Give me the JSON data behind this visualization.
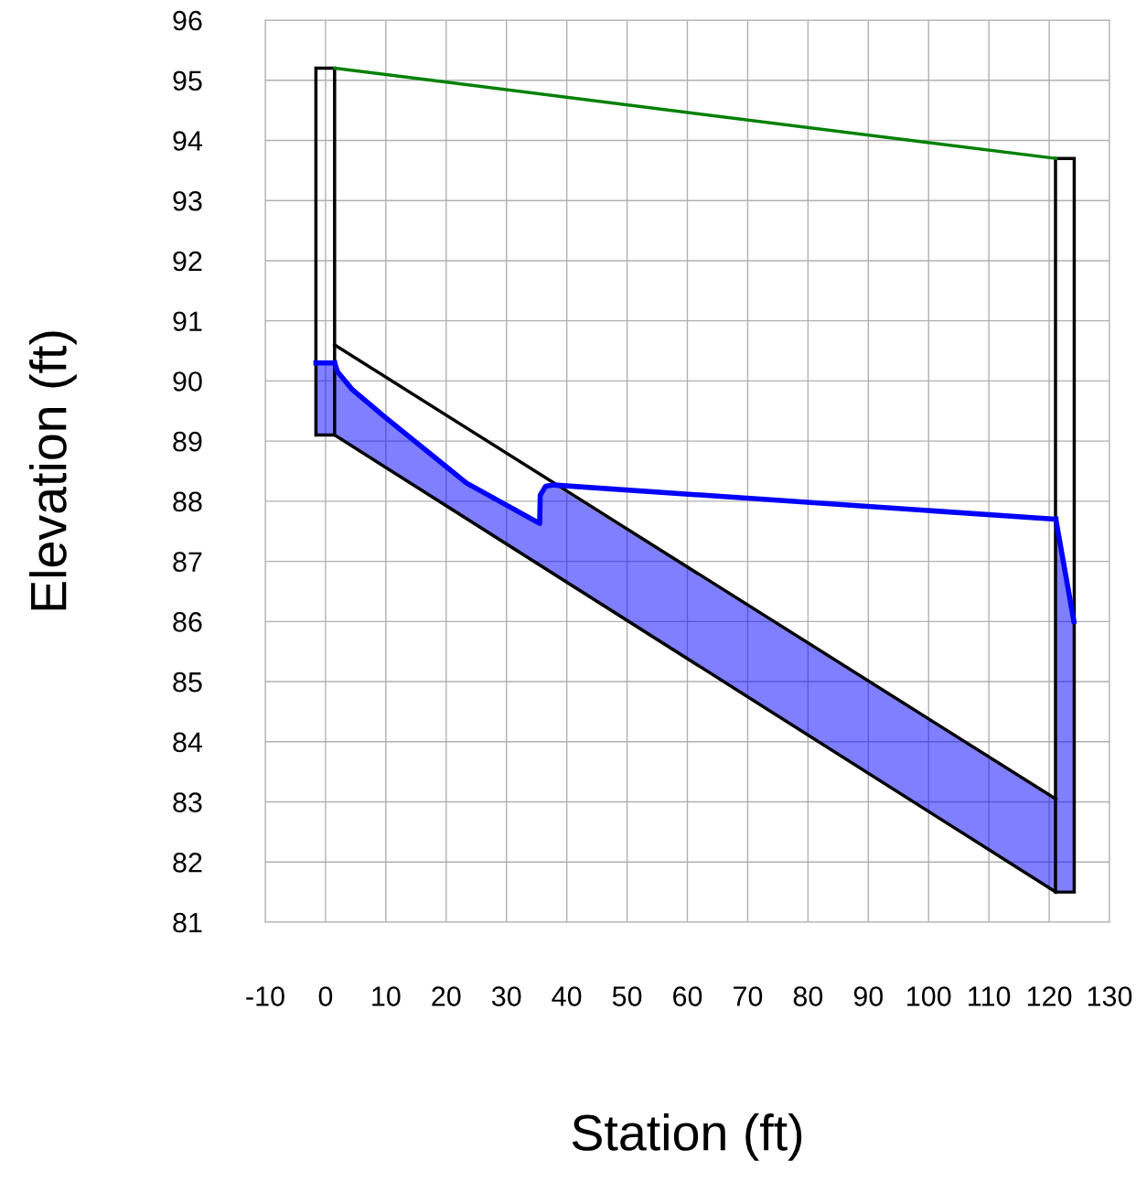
{
  "chart_data": {
    "type": "line",
    "xlabel": "Station (ft)",
    "ylabel": "Elevation (ft)",
    "xlim": [
      -10,
      130
    ],
    "ylim": [
      81,
      96
    ],
    "xticks": [
      -10,
      0,
      10,
      20,
      30,
      40,
      50,
      60,
      70,
      80,
      90,
      100,
      110,
      120,
      130
    ],
    "yticks": [
      81,
      82,
      83,
      84,
      85,
      86,
      87,
      88,
      89,
      90,
      91,
      92,
      93,
      94,
      95,
      96
    ],
    "grid": true,
    "marker": "none",
    "series": [
      {
        "type": "bar",
        "color": "#000000",
        "x": [
          -0.05,
          122.6
        ],
        "base": [
          89.1,
          81.5
        ],
        "values": [
          6.1,
          12.2
        ]
      },
      {
        "color": "#0000ff",
        "x": [
          -1.6,
          1.5
        ],
        "values": [
          90.3,
          90.3
        ],
        "upper": [
          90.3,
          90.3
        ],
        "lower": [
          89.1,
          89.1
        ]
      },
      {
        "color": "#0000ff",
        "x": [
          1.5,
          2,
          4.4,
          9.7,
          23.4,
          35.5,
          35.6,
          36.5,
          37.8,
          121.1
        ],
        "values": [
          90.3,
          90.15,
          89.86,
          89.41,
          88.3,
          87.63,
          88.1,
          88.25,
          88.27,
          87.7
        ],
        "upper": [
          90.3,
          90.15,
          89.86,
          89.41,
          88.3,
          87.63,
          88.1,
          88.25,
          88.27,
          83.05
        ],
        "lower": [
          89.1,
          89.07,
          88.92,
          88.58,
          87.72,
          86.95,
          86.94,
          86.88,
          86.8,
          81.5
        ]
      },
      {
        "color": "#0000ff",
        "x": [
          121.1,
          124.1
        ],
        "values": [
          87.7,
          86.0
        ],
        "upper": [
          87.7,
          86.0
        ],
        "lower": [
          81.5,
          81.5
        ]
      },
      {
        "color": "#008000",
        "x": [
          1.5,
          121.1
        ],
        "values": [
          95.2,
          93.7
        ]
      },
      {
        "color": "#000000",
        "x": [
          1.5,
          121.1
        ],
        "values": [
          90.6,
          83.05
        ]
      },
      {
        "color": "#000000",
        "x": [
          1.5,
          121.1
        ],
        "values": [
          89.1,
          81.5
        ]
      }
    ]
  }
}
